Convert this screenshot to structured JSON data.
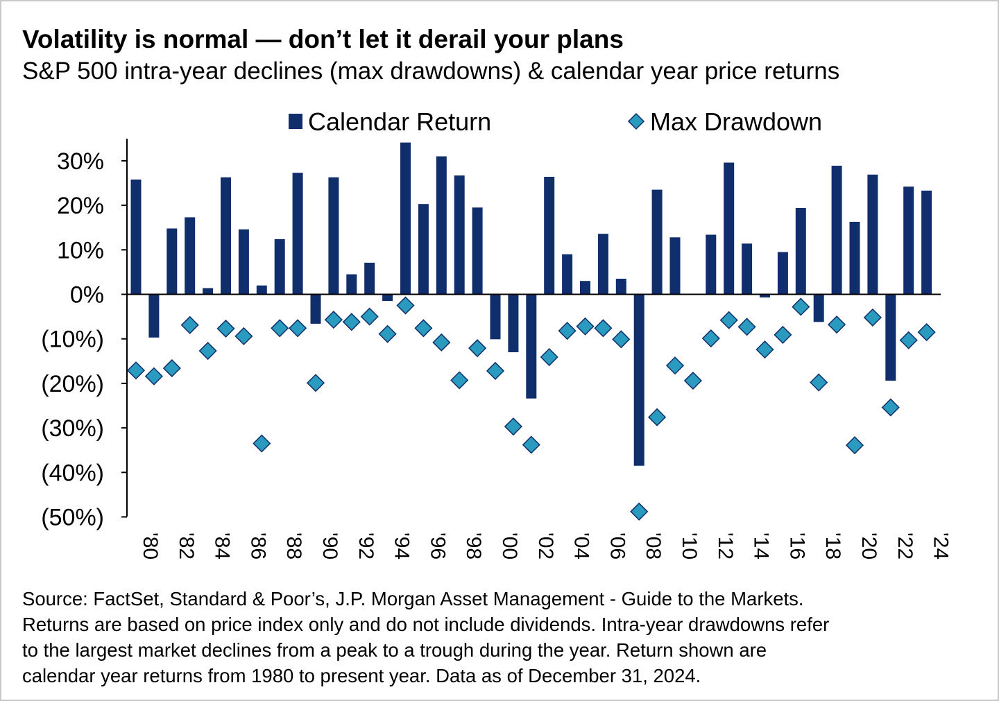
{
  "title": "Volatility is normal — don’t let it derail your plans",
  "subtitle": "S&P 500 intra-year declines (max drawdowns) & calendar year price returns",
  "colors": {
    "bar": "#0f2e6b",
    "diamond_fill": "#2a9bbf",
    "diamond_stroke": "#0f2e6b",
    "axis": "#000000"
  },
  "chart_data": {
    "type": "bar",
    "title": "",
    "xlabel": "",
    "ylabel": "",
    "ylim": [
      -50,
      34
    ],
    "y_ticks": [
      30,
      20,
      10,
      0,
      -10,
      -20,
      -30,
      -40,
      -50
    ],
    "y_tick_labels": [
      "30%",
      "20%",
      "10%",
      "0%",
      "(10%)",
      "(20%)",
      "(30%)",
      "(40%)",
      "(50%)"
    ],
    "categories": [
      "'80",
      "'81",
      "'82",
      "'83",
      "'84",
      "'85",
      "'86",
      "'87",
      "'88",
      "'89",
      "'90",
      "'91",
      "'92",
      "'93",
      "'94",
      "'95",
      "'96",
      "'97",
      "'98",
      "'99",
      "'00",
      "'01",
      "'02",
      "'03",
      "'04",
      "'05",
      "'06",
      "'07",
      "'08",
      "'09",
      "'10",
      "'11",
      "'12",
      "'13",
      "'14",
      "'15",
      "'16",
      "'17",
      "'18",
      "'19",
      "'20",
      "'21",
      "'22",
      "'23",
      "'24"
    ],
    "x_tick_labels": [
      "'80",
      "'82",
      "'84",
      "'86",
      "'88",
      "'90",
      "'92",
      "'94",
      "'96",
      "'98",
      "'00",
      "'02",
      "'04",
      "'06",
      "'08",
      "'10",
      "'12",
      "'14",
      "'16",
      "'18",
      "'20",
      "'22",
      "'24"
    ],
    "series": [
      {
        "name": "Calendar Return",
        "kind": "bar",
        "values": [
          25.8,
          -9.7,
          14.8,
          17.3,
          1.4,
          26.3,
          14.6,
          2.0,
          12.4,
          27.3,
          -6.6,
          26.3,
          4.5,
          7.1,
          -1.5,
          34.1,
          20.3,
          31.0,
          26.7,
          19.5,
          -10.1,
          -13.0,
          -23.4,
          26.4,
          9.0,
          3.0,
          13.6,
          3.5,
          -38.5,
          23.5,
          12.8,
          0.0,
          13.4,
          29.6,
          11.4,
          -0.7,
          9.5,
          19.4,
          -6.2,
          28.9,
          16.3,
          26.9,
          -19.4,
          24.2,
          23.3
        ]
      },
      {
        "name": "Max Drawdown",
        "kind": "scatter",
        "values": [
          -17.1,
          -18.4,
          -16.6,
          -6.9,
          -12.7,
          -7.7,
          -9.4,
          -33.5,
          -7.6,
          -7.6,
          -19.9,
          -5.7,
          -6.2,
          -5.0,
          -8.9,
          -2.5,
          -7.6,
          -10.8,
          -19.3,
          -12.1,
          -17.2,
          -29.7,
          -33.8,
          -14.1,
          -8.2,
          -7.2,
          -7.6,
          -10.1,
          -48.8,
          -27.6,
          -16.0,
          -19.4,
          -9.9,
          -5.8,
          -7.3,
          -12.4,
          -9.1,
          -2.8,
          -19.8,
          -6.8,
          -33.9,
          -5.2,
          -25.4,
          -10.3,
          -8.5
        ]
      }
    ],
    "legend": [
      "Calendar Return",
      "Max Drawdown"
    ],
    "legend_position": "top"
  },
  "footnote": {
    "lines": [
      "Source: FactSet, Standard & Poor’s, J.P. Morgan Asset Management - Guide to the Markets.",
      "Returns are based on price index only and do not include dividends. Intra-year drawdowns refer",
      "to the largest market declines from a peak to a trough during the year. Return shown are",
      "calendar year returns from 1980 to present year. Data as of December 31, 2024."
    ]
  }
}
